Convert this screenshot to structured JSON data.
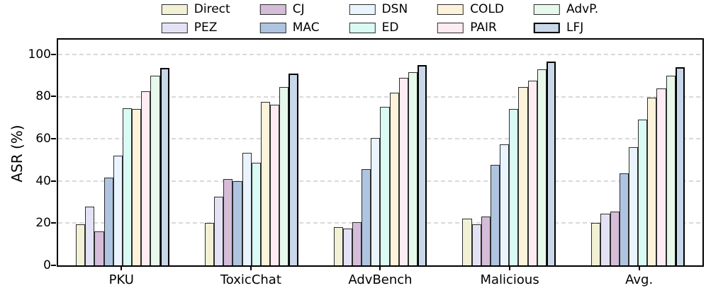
{
  "chart_data": {
    "type": "bar",
    "title": "",
    "xlabel": "",
    "ylabel": "ASR (%)",
    "ylim": [
      0,
      107
    ],
    "yticks": [
      0,
      20,
      40,
      60,
      80,
      100
    ],
    "grid": "horizontal dashed gridlines at y ticks",
    "legend_position": "top-center above axes, 5 columns x 2 rows, no frame, column-major order",
    "bar_edge_color": "#2d2d2d",
    "emphasized_edge_color": "#000000",
    "categories": [
      "PKU",
      "ToxicChat",
      "AdvBench",
      "Malicious",
      "Avg."
    ],
    "series": [
      {
        "name": "Direct",
        "color": "#f2f1d6",
        "values": [
          19.5,
          20,
          18,
          22,
          20
        ]
      },
      {
        "name": "PEZ",
        "color": "#e3e2f5",
        "values": [
          28,
          32.5,
          17.5,
          19.5,
          24.5
        ]
      },
      {
        "name": "CJ",
        "color": "#d5bcd8",
        "values": [
          16,
          41,
          20.5,
          23,
          25.5
        ]
      },
      {
        "name": "MAC",
        "color": "#aec4e0",
        "values": [
          41.5,
          40,
          45.5,
          47.5,
          43.5
        ]
      },
      {
        "name": "DSN",
        "color": "#eaf4fe",
        "values": [
          52,
          53.5,
          60.5,
          57.5,
          56
        ]
      },
      {
        "name": "ED",
        "color": "#d9fbf4",
        "values": [
          74.5,
          48.5,
          75,
          74,
          69
        ]
      },
      {
        "name": "COLD",
        "color": "#fdf2da",
        "values": [
          74,
          77.5,
          82,
          84.5,
          79.5
        ]
      },
      {
        "name": "PAIR",
        "color": "#feecf2",
        "values": [
          82.5,
          76,
          89,
          87.5,
          84
        ]
      },
      {
        "name": "AdvP.",
        "color": "#e7f9ea",
        "values": [
          90,
          84.5,
          91.5,
          93,
          90
        ]
      },
      {
        "name": "LFJ",
        "color": "#c9d8e9",
        "values": [
          93.5,
          91,
          95,
          96.5,
          94
        ],
        "emphasized_border": true
      }
    ]
  }
}
